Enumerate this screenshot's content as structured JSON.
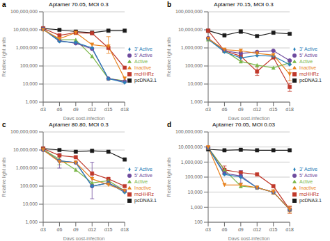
{
  "chart_data": [
    {
      "type": "line",
      "panel_label": "a",
      "title": "Aptamer 70.05, MOI 0.3",
      "xlabel": "Days post-infection",
      "ylabel": "Relative light units",
      "categories": [
        "d3",
        "d6",
        "d9",
        "d12",
        "d15",
        "d18"
      ],
      "series": [
        {
          "name": "pcDNA3.1",
          "color": "#1a1a1a",
          "marker": "square",
          "values": [
            12000000,
            10000000,
            8000000,
            7000000,
            9000000,
            9000000
          ],
          "yerr_lo": [
            0,
            0,
            0,
            0,
            0,
            0
          ],
          "yerr_hi": [
            0,
            0,
            0,
            0,
            0,
            0
          ]
        },
        {
          "name": "mcHHRz",
          "color": "#c0392b",
          "marker": "square",
          "values": [
            12000000,
            5000000,
            7000000,
            6500000,
            1000000,
            80000
          ],
          "yerr_lo": [
            0,
            0,
            0,
            0,
            0,
            0
          ],
          "yerr_hi": [
            0,
            0,
            0,
            0,
            0,
            0
          ]
        },
        {
          "name": "Active",
          "color": "#7ab648",
          "marker": "triangle",
          "values": [
            11000000,
            2800000,
            2800000,
            350000,
            20000,
            15000
          ],
          "yerr_lo": [
            0,
            0,
            0,
            0,
            0,
            0
          ],
          "yerr_hi": [
            0,
            0,
            0,
            0,
            0,
            0
          ]
        },
        {
          "name": "5' Active",
          "color": "#6e4b9e",
          "marker": "circle",
          "values": [
            11000000,
            2500000,
            1800000,
            900000,
            20000,
            14000
          ],
          "yerr_lo": [
            0,
            0,
            0,
            0,
            0,
            0
          ],
          "yerr_hi": [
            0,
            0,
            0,
            0,
            0,
            0
          ]
        },
        {
          "name": "3' Active",
          "color": "#2980b9",
          "marker": "diamond",
          "values": [
            11000000,
            2300000,
            2000000,
            1000000,
            20000,
            12000
          ],
          "yerr_lo": [
            0,
            0,
            0,
            0,
            0,
            0
          ],
          "yerr_hi": [
            0,
            0,
            0,
            0,
            0,
            0
          ]
        },
        {
          "name": "Inactive",
          "color": "#e8821e",
          "marker": "triangle-down",
          "values": [
            10000000,
            3200000,
            7000000,
            1500000,
            1200000,
            20000
          ],
          "yerr_lo": [
            0,
            0,
            1500000,
            0,
            700000,
            0
          ],
          "yerr_hi": [
            0,
            0,
            2500000,
            0,
            3000000,
            0
          ]
        }
      ],
      "log": "y",
      "ylim": [
        1000,
        100000000
      ],
      "yticks": [
        {
          "value": 1000,
          "label": "1,000"
        },
        {
          "value": 10000,
          "label": "10,000"
        },
        {
          "value": 100000,
          "label": "100,000"
        },
        {
          "value": 1000000,
          "label": "1,000,000"
        },
        {
          "value": 10000000,
          "label": "10,000,000"
        },
        {
          "value": 100000000,
          "label": "100,000,000"
        }
      ],
      "grid": true,
      "legend": "right"
    },
    {
      "type": "line",
      "panel_label": "b",
      "title": "Aptamer 70.15, MOI 0.3",
      "xlabel": "Days post-infection",
      "ylabel": "Relative light units",
      "categories": [
        "d3",
        "d6",
        "d9",
        "d12",
        "d15",
        "d18"
      ],
      "series": [
        {
          "name": "pcDNA3.1",
          "color": "#1a1a1a",
          "marker": "square",
          "values": [
            9000000,
            5000000,
            8000000,
            4500000,
            7000000,
            6000000
          ],
          "yerr_lo": [
            0,
            0,
            1500000,
            0,
            0,
            0
          ],
          "yerr_hi": [
            0,
            0,
            2000000,
            0,
            0,
            0
          ]
        },
        {
          "name": "mcHHRz",
          "color": "#c0392b",
          "marker": "square",
          "values": [
            9000000,
            700000,
            350000,
            50000,
            300000,
            7000
          ],
          "yerr_lo": [
            0,
            0,
            150000,
            20000,
            0,
            3000
          ],
          "yerr_hi": [
            0,
            0,
            250000,
            40000,
            0,
            4000
          ]
        },
        {
          "name": "Active",
          "color": "#7ab648",
          "marker": "triangle",
          "values": [
            3000000,
            700000,
            180000,
            110000,
            80000,
            150000
          ],
          "yerr_lo": [
            0,
            0,
            0,
            0,
            0,
            0
          ],
          "yerr_hi": [
            0,
            0,
            0,
            0,
            0,
            0
          ]
        },
        {
          "name": "5' Active",
          "color": "#6e4b9e",
          "marker": "circle",
          "values": [
            3500000,
            700000,
            500000,
            600000,
            700000,
            200000
          ],
          "yerr_lo": [
            0,
            0,
            0,
            0,
            0,
            0
          ],
          "yerr_hi": [
            0,
            0,
            0,
            0,
            0,
            0
          ]
        },
        {
          "name": "3' Active",
          "color": "#2980b9",
          "marker": "diamond",
          "values": [
            3000000,
            600000,
            280000,
            380000,
            350000,
            120000
          ],
          "yerr_lo": [
            0,
            0,
            0,
            0,
            0,
            0
          ],
          "yerr_hi": [
            0,
            0,
            0,
            0,
            0,
            0
          ]
        },
        {
          "name": "Inactive",
          "color": "#e8821e",
          "marker": "triangle-down",
          "values": [
            3200000,
            800000,
            700000,
            500000,
            400000,
            35000
          ],
          "yerr_lo": [
            0,
            0,
            0,
            0,
            0,
            20000
          ],
          "yerr_hi": [
            0,
            0,
            0,
            0,
            0,
            30000
          ]
        }
      ],
      "log": "y",
      "ylim": [
        1000,
        100000000
      ],
      "yticks": [
        {
          "value": 1000,
          "label": "1,000"
        },
        {
          "value": 10000,
          "label": "10,000"
        },
        {
          "value": 100000,
          "label": "100,000"
        },
        {
          "value": 1000000,
          "label": "1,000,000"
        },
        {
          "value": 10000000,
          "label": "10,000,000"
        },
        {
          "value": 100000000,
          "label": "100,000,000"
        }
      ],
      "grid": true,
      "legend": "right"
    },
    {
      "type": "line",
      "panel_label": "c",
      "title": "Aptamer 80.80, MOI 0.3",
      "xlabel": "Days post-infection",
      "ylabel": "Relative light units",
      "categories": [
        "d3",
        "d6",
        "d9",
        "d12",
        "d15",
        "d18"
      ],
      "series": [
        {
          "name": "pcDNA3.1",
          "color": "#1a1a1a",
          "marker": "square",
          "values": [
            12000000,
            10000000,
            8000000,
            9000000,
            8000000,
            3000000
          ],
          "yerr_lo": [
            0,
            0,
            0,
            0,
            0,
            0
          ],
          "yerr_hi": [
            0,
            0,
            0,
            0,
            0,
            0
          ]
        },
        {
          "name": "mcHHRz",
          "color": "#c0392b",
          "marker": "square",
          "values": [
            12000000,
            5000000,
            4000000,
            500000,
            250000,
            100000
          ],
          "yerr_lo": [
            0,
            0,
            0,
            0,
            0,
            0
          ],
          "yerr_hi": [
            0,
            0,
            0,
            0,
            0,
            0
          ]
        },
        {
          "name": "Active",
          "color": "#7ab648",
          "marker": "triangle",
          "values": [
            11000000,
            3000000,
            800000,
            150000,
            200000,
            55000
          ],
          "yerr_lo": [
            0,
            1500000,
            0,
            0,
            0,
            0
          ],
          "yerr_hi": [
            0,
            2500000,
            0,
            0,
            0,
            0
          ]
        },
        {
          "name": "5' Active",
          "color": "#6e4b9e",
          "marker": "circle",
          "values": [
            10000000,
            2500000,
            2000000,
            100000,
            150000,
            55000
          ],
          "yerr_lo": [
            0,
            1500000,
            0,
            80000,
            0,
            0
          ],
          "yerr_hi": [
            0,
            4000000,
            0,
            2000000,
            0,
            0
          ]
        },
        {
          "name": "3' Active",
          "color": "#2980b9",
          "marker": "diamond",
          "values": [
            10000000,
            2500000,
            2000000,
            100000,
            150000,
            45000
          ],
          "yerr_lo": [
            0,
            0,
            0,
            0,
            0,
            0
          ],
          "yerr_hi": [
            0,
            0,
            0,
            0,
            0,
            0
          ]
        },
        {
          "name": "Inactive",
          "color": "#e8821e",
          "marker": "triangle-down",
          "values": [
            10000000,
            2200000,
            2000000,
            250000,
            120000,
            55000
          ],
          "yerr_lo": [
            0,
            0,
            0,
            0,
            0,
            0
          ],
          "yerr_hi": [
            0,
            0,
            0,
            0,
            0,
            0
          ]
        }
      ],
      "log": "y",
      "ylim": [
        1000,
        100000000
      ],
      "yticks": [
        {
          "value": 1000,
          "label": "1,000"
        },
        {
          "value": 10000,
          "label": "10,000"
        },
        {
          "value": 100000,
          "label": "100,000"
        },
        {
          "value": 1000000,
          "label": "1,000,000"
        },
        {
          "value": 10000000,
          "label": "10,000,000"
        },
        {
          "value": 100000000,
          "label": "100,000,000"
        }
      ],
      "grid": true,
      "legend": "right"
    },
    {
      "type": "line",
      "panel_label": "d",
      "title": "Aptamer 70.05, MOI 0.03",
      "xlabel": "Days post-infection",
      "ylabel": "Relative light units",
      "categories": [
        "d3",
        "d6",
        "d9",
        "d12",
        "d15",
        "d18"
      ],
      "series": [
        {
          "name": "pcDNA3.1",
          "color": "#1a1a1a",
          "marker": "square",
          "values": [
            7000000,
            6000000,
            6500000,
            6000000,
            6000000,
            6000000
          ],
          "yerr_lo": [
            0,
            0,
            0,
            0,
            0,
            0
          ],
          "yerr_hi": [
            0,
            0,
            0,
            0,
            0,
            0
          ]
        },
        {
          "name": "mcHHRz",
          "color": "#c0392b",
          "marker": "square",
          "values": [
            9000000,
            300000,
            200000,
            150000,
            25000,
            700
          ],
          "yerr_lo": [
            0,
            150000,
            0,
            0,
            0,
            300
          ],
          "yerr_hi": [
            0,
            250000,
            0,
            0,
            0,
            400
          ]
        },
        {
          "name": "Active",
          "color": "#7ab648",
          "marker": "triangle",
          "values": [
            9000000,
            300000,
            25000,
            20000,
            10000,
            700
          ],
          "yerr_lo": [
            0,
            0,
            0,
            0,
            0,
            0
          ],
          "yerr_hi": [
            0,
            0,
            0,
            0,
            0,
            0
          ]
        },
        {
          "name": "5' Active",
          "color": "#6e4b9e",
          "marker": "circle",
          "values": [
            9000000,
            180000,
            120000,
            20000,
            10000,
            700
          ],
          "yerr_lo": [
            0,
            0,
            80000,
            0,
            0,
            0
          ],
          "yerr_hi": [
            0,
            0,
            150000,
            0,
            0,
            0
          ]
        },
        {
          "name": "3' Active",
          "color": "#2980b9",
          "marker": "diamond",
          "values": [
            9000000,
            150000,
            100000,
            20000,
            10000,
            700
          ],
          "yerr_lo": [
            0,
            0,
            0,
            0,
            0,
            0
          ],
          "yerr_hi": [
            0,
            0,
            0,
            0,
            0,
            0
          ]
        },
        {
          "name": "Inactive",
          "color": "#e8821e",
          "marker": "triangle-down",
          "values": [
            9500000,
            30000,
            30000,
            20000,
            10000,
            700
          ],
          "yerr_lo": [
            0,
            0,
            0,
            0,
            3000,
            300
          ],
          "yerr_hi": [
            0,
            0,
            0,
            0,
            5000,
            500
          ]
        }
      ],
      "log": "y",
      "ylim": [
        100,
        100000000
      ],
      "yticks": [
        100,
        {
          "value": 1000,
          "label": "1,000"
        },
        {
          "value": 10000,
          "label": "10,000"
        },
        {
          "value": 100000,
          "label": "100,000"
        },
        {
          "value": 1000000,
          "label": "1,000,000"
        },
        {
          "value": 10000000,
          "label": "10,000,000"
        },
        {
          "value": 100000000,
          "label": "100,000,000"
        }
      ],
      "grid": true,
      "legend": "right"
    }
  ]
}
